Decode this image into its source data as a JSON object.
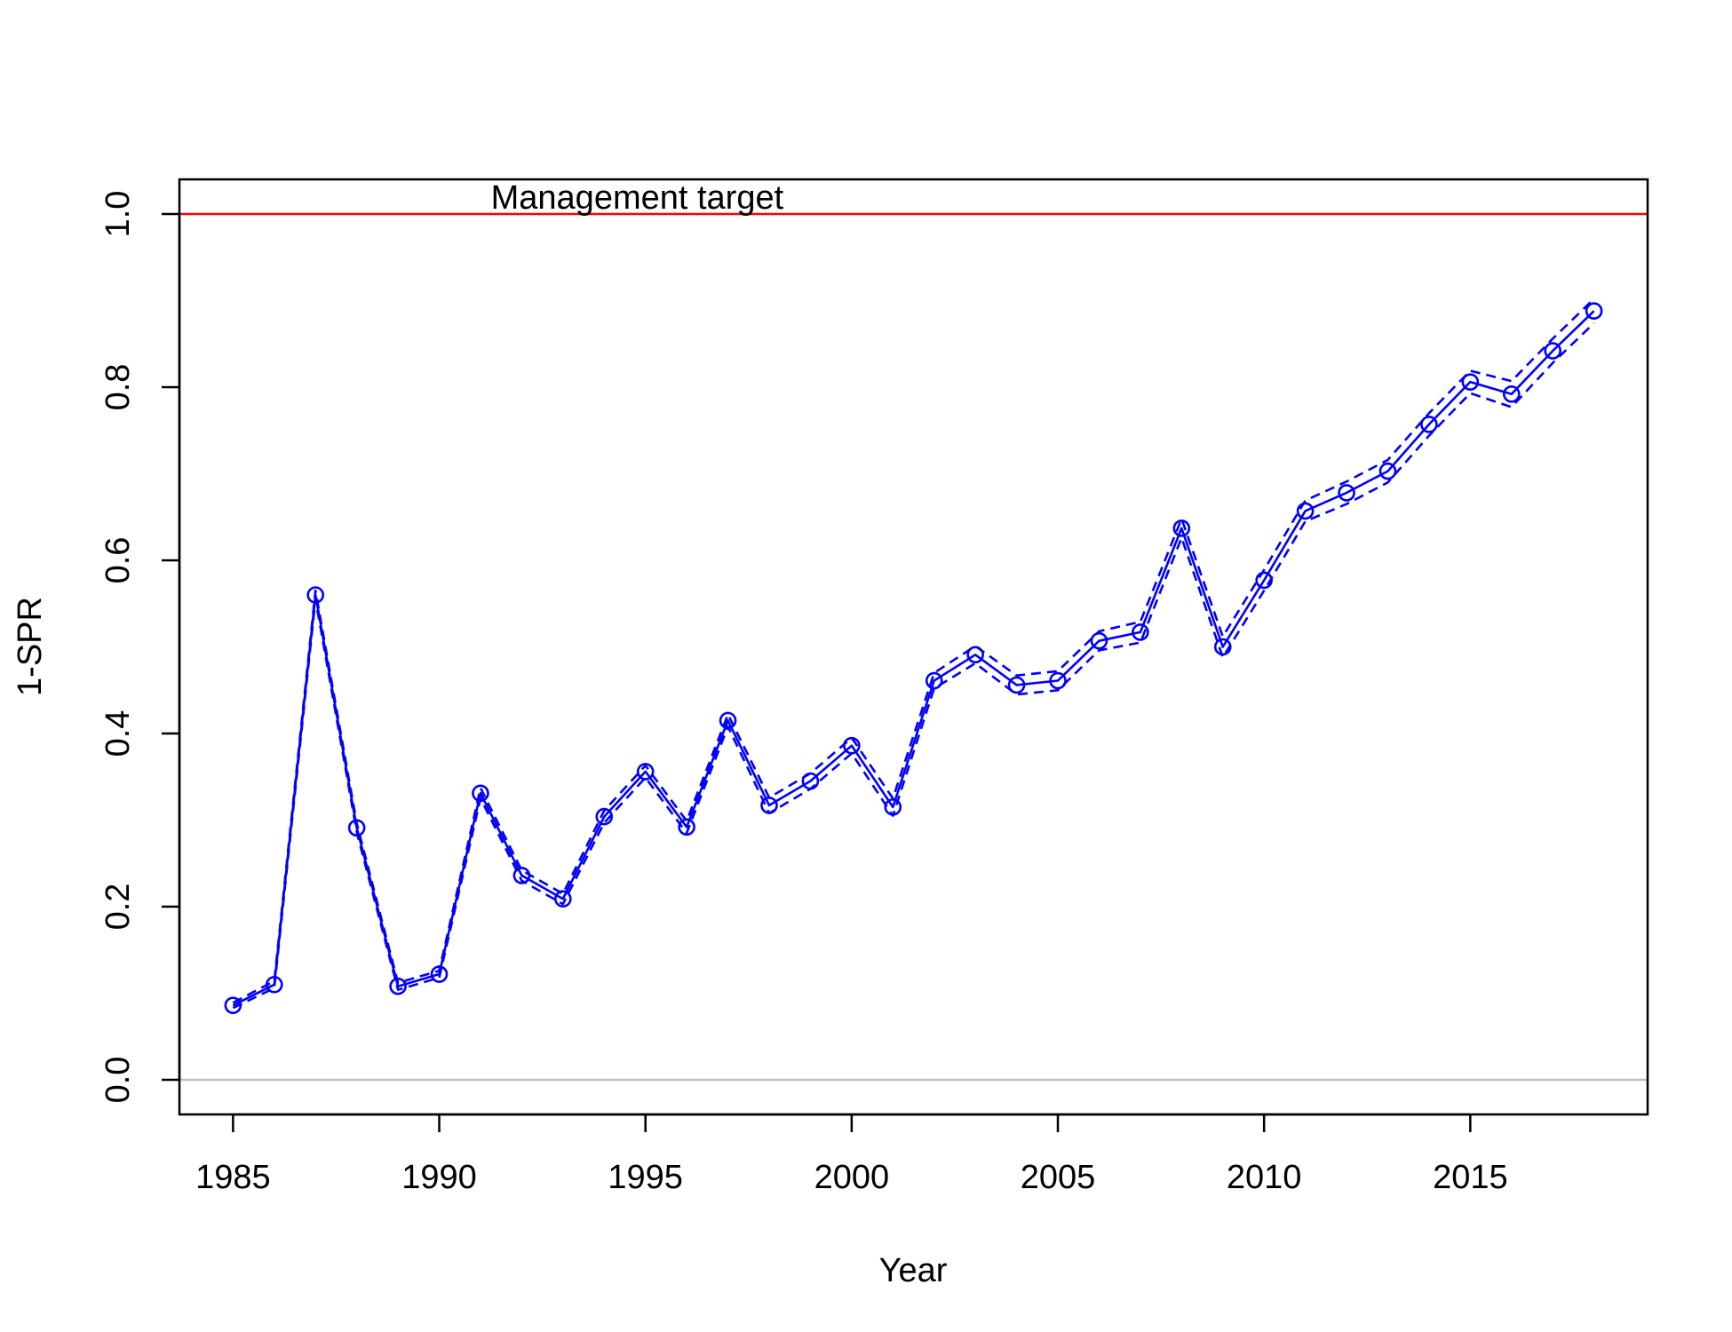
{
  "chart_data": {
    "type": "line",
    "title": "",
    "xlabel": "Year",
    "ylabel": "1-SPR",
    "xlim": [
      1983.7,
      2019.3
    ],
    "ylim": [
      -0.04,
      1.04
    ],
    "x_ticks": [
      1985,
      1990,
      1995,
      2000,
      2005,
      2010,
      2015
    ],
    "y_ticks": [
      0.0,
      0.2,
      0.4,
      0.6,
      0.8,
      1.0
    ],
    "y_tick_labels": [
      "0.0",
      "0.2",
      "0.4",
      "0.6",
      "0.8",
      "1.0"
    ],
    "grid": false,
    "x": [
      1985,
      1986,
      1987,
      1988,
      1989,
      1990,
      1991,
      1992,
      1993,
      1994,
      1995,
      1996,
      1997,
      1998,
      1999,
      2000,
      2001,
      2002,
      2003,
      2004,
      2005,
      2006,
      2007,
      2008,
      2009,
      2010,
      2011,
      2012,
      2013,
      2014,
      2015,
      2016,
      2017,
      2018
    ],
    "series": [
      {
        "role": "estimate",
        "color": "#0000ff",
        "style": "solid",
        "markers": "open-circle",
        "values": [
          0.086,
          0.11,
          0.56,
          0.291,
          0.108,
          0.122,
          0.331,
          0.236,
          0.209,
          0.304,
          0.356,
          0.292,
          0.415,
          0.317,
          0.345,
          0.386,
          0.315,
          0.461,
          0.491,
          0.456,
          0.461,
          0.507,
          0.517,
          0.637,
          0.5,
          0.577,
          0.657,
          0.678,
          0.703,
          0.757,
          0.806,
          0.792,
          0.842,
          0.888
        ]
      },
      {
        "role": "upper-interval",
        "color": "#0000ff",
        "style": "dashed",
        "values": [
          0.089,
          0.114,
          0.565,
          0.296,
          0.112,
          0.126,
          0.337,
          0.242,
          0.215,
          0.311,
          0.363,
          0.299,
          0.422,
          0.326,
          0.354,
          0.395,
          0.325,
          0.47,
          0.501,
          0.467,
          0.472,
          0.518,
          0.529,
          0.648,
          0.512,
          0.589,
          0.669,
          0.691,
          0.716,
          0.77,
          0.819,
          0.807,
          0.856,
          0.902
        ]
      },
      {
        "role": "lower-interval",
        "color": "#0000ff",
        "style": "dashed",
        "values": [
          0.083,
          0.106,
          0.555,
          0.286,
          0.104,
          0.118,
          0.325,
          0.23,
          0.203,
          0.297,
          0.349,
          0.285,
          0.408,
          0.308,
          0.336,
          0.377,
          0.305,
          0.452,
          0.481,
          0.445,
          0.45,
          0.496,
          0.505,
          0.626,
          0.488,
          0.565,
          0.645,
          0.665,
          0.69,
          0.744,
          0.793,
          0.777,
          0.828,
          0.874
        ]
      }
    ],
    "reference_lines": [
      {
        "y": 1.0,
        "color": "#ff0000"
      },
      {
        "y": 0.0,
        "color": "#bebebe"
      }
    ],
    "annotations": [
      {
        "text": "Management target",
        "x": 1994.8,
        "y": 1.0
      }
    ]
  }
}
